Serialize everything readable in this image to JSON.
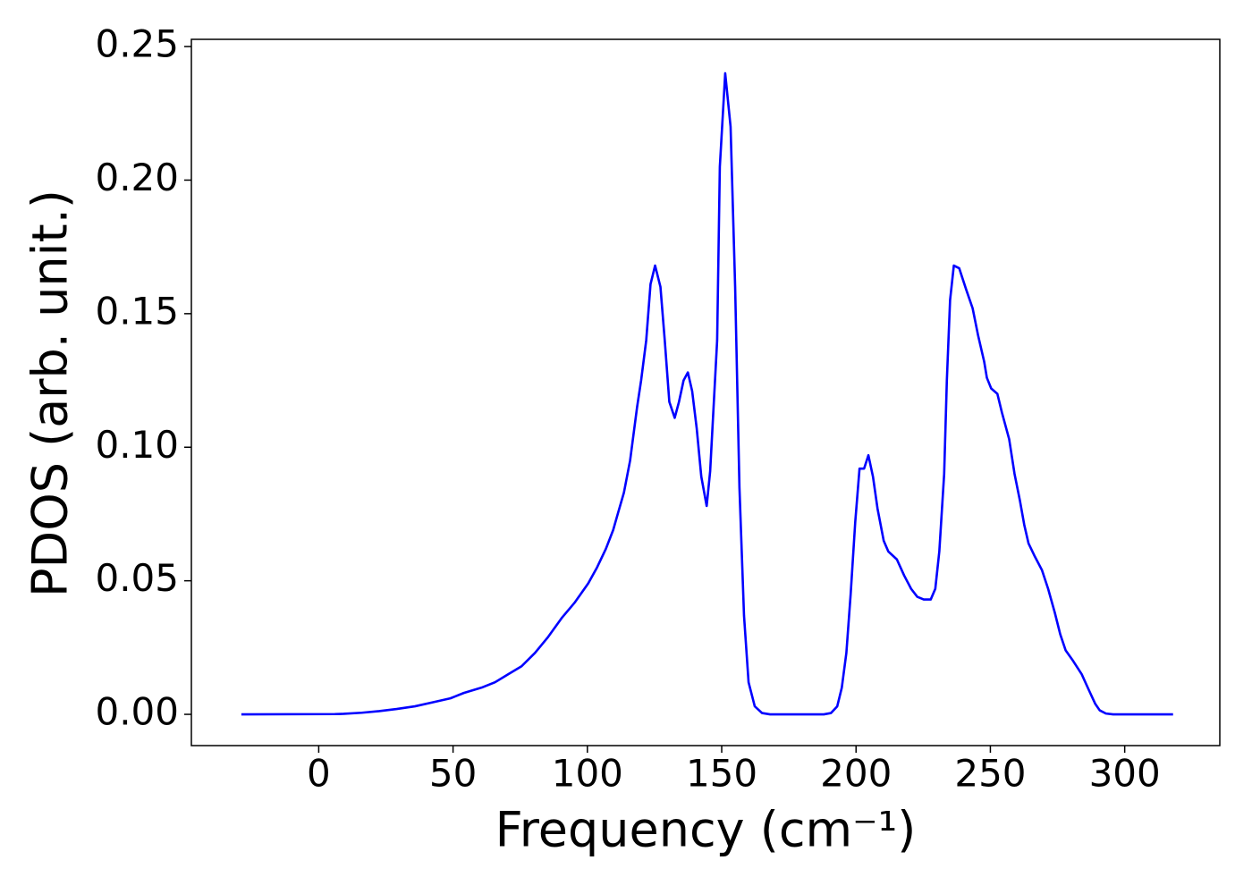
{
  "chart_data": {
    "type": "line",
    "x_label": "Frequency (cm⁻¹)",
    "y_label": "PDOS (arb. unit.)",
    "xlim": [
      -47.4,
      335.4
    ],
    "ylim": [
      -0.0117,
      0.2527
    ],
    "xticks": [
      0,
      50,
      100,
      150,
      200,
      250,
      300
    ],
    "yticks": [
      {
        "value": 0,
        "label": "0.00"
      },
      {
        "value": 0.05,
        "label": "0.05"
      },
      {
        "value": 0.1,
        "label": "0.10"
      },
      {
        "value": 0.15,
        "label": "0.15"
      },
      {
        "value": 0.2,
        "label": "0.20"
      },
      {
        "value": 0.25,
        "label": "0.25"
      }
    ],
    "x": [
      -28.8,
      6,
      9.3,
      16,
      22.5,
      29,
      35.8,
      42.4,
      49,
      54,
      60.6,
      65.6,
      70.5,
      75.5,
      80.5,
      85.4,
      90.4,
      95.4,
      100.3,
      103.6,
      106.9,
      109.6,
      111.3,
      113.6,
      115.9,
      118.5,
      120,
      121.9,
      123.5,
      125.2,
      127.2,
      128.8,
      130.5,
      132.5,
      134.1,
      135.8,
      137.4,
      139,
      140.7,
      142.4,
      144.4,
      145.7,
      148.3,
      149.3,
      151.3,
      153.3,
      155,
      156.6,
      158.3,
      160,
      162.3,
      165,
      168,
      188,
      190.7,
      193,
      194.7,
      196.4,
      198,
      199.7,
      201.3,
      203,
      204.6,
      206.3,
      208,
      210.3,
      212,
      215.2,
      217.9,
      220.5,
      222.8,
      225.2,
      227.8,
      229.5,
      231,
      232.8,
      233.8,
      235,
      236.4,
      238.4,
      241,
      243.4,
      245.4,
      247.7,
      248.7,
      250.3,
      252.6,
      254.3,
      257,
      259,
      261,
      262.6,
      264.2,
      266.6,
      269.2,
      271.5,
      274,
      276,
      278,
      280.8,
      284,
      286.7,
      289,
      290.7,
      293,
      295.7,
      318
    ],
    "series": [
      {
        "name": "PDOS",
        "color": "#0000ff",
        "values": [
          0,
          0.0001,
          0.0002,
          0.0006,
          0.0012,
          0.002,
          0.003,
          0.0045,
          0.006,
          0.008,
          0.01,
          0.012,
          0.015,
          0.018,
          0.023,
          0.029,
          0.036,
          0.042,
          0.049,
          0.055,
          0.062,
          0.069,
          0.075,
          0.083,
          0.095,
          0.115,
          0.125,
          0.14,
          0.161,
          0.168,
          0.16,
          0.14,
          0.117,
          0.111,
          0.117,
          0.125,
          0.128,
          0.121,
          0.107,
          0.089,
          0.078,
          0.091,
          0.14,
          0.205,
          0.24,
          0.22,
          0.16,
          0.085,
          0.037,
          0.012,
          0.003,
          0.0005,
          0,
          0,
          0.0005,
          0.003,
          0.01,
          0.023,
          0.045,
          0.072,
          0.092,
          0.092,
          0.097,
          0.089,
          0.077,
          0.065,
          0.061,
          0.058,
          0.052,
          0.047,
          0.044,
          0.043,
          0.043,
          0.047,
          0.061,
          0.09,
          0.125,
          0.155,
          0.168,
          0.167,
          0.159,
          0.152,
          0.142,
          0.132,
          0.126,
          0.122,
          0.12,
          0.113,
          0.103,
          0.09,
          0.08,
          0.071,
          0.064,
          0.059,
          0.054,
          0.047,
          0.038,
          0.03,
          0.024,
          0.02,
          0.015,
          0.009,
          0.004,
          0.0015,
          0.0003,
          0,
          0
        ]
      }
    ]
  }
}
